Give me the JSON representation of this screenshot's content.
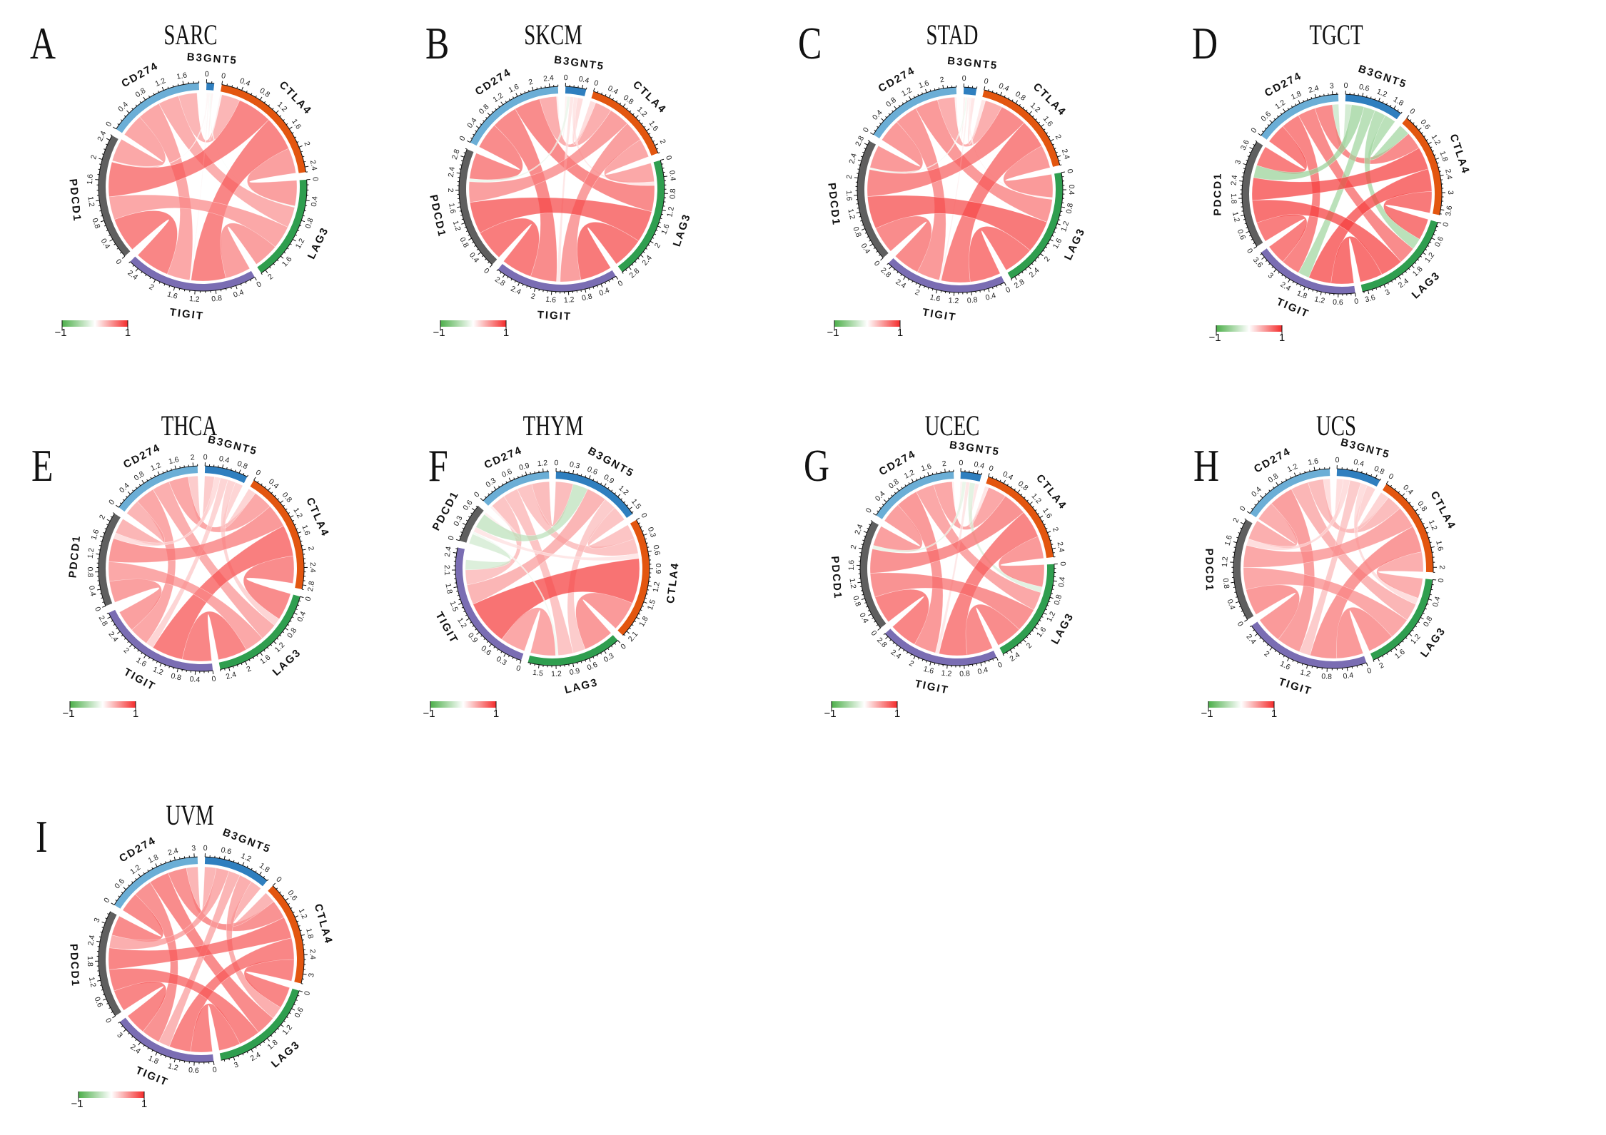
{
  "figure": {
    "description": "Chord diagrams of gene-gene correlations across nine cancer types",
    "legend": {
      "min_label": "-1",
      "max_label": "1",
      "neg_color": "#4daf4a",
      "mid_color": "#ffffff",
      "pos_color": "#f42c2c"
    },
    "gene_colors": {
      "CD274": "#6baed6",
      "B3GNT5": "#2f7fbf",
      "CTLA4": "#e3560f",
      "LAG3": "#2f9e4f",
      "TIGIT": "#7a6db3",
      "PDCD1": "#5f5f5f"
    }
  },
  "chart_data": [
    {
      "type": "chord",
      "letter": "A",
      "title": "SARC",
      "tick_step": 0.4,
      "genes": [
        "B3GNT5",
        "CTLA4",
        "LAG3",
        "TIGIT",
        "PDCD1",
        "CD274"
      ],
      "axis_max": {
        "B3GNT5": 0.15,
        "CTLA4": 2.5,
        "LAG3": 2.1,
        "TIGIT": 2.6,
        "PDCD1": 2.5,
        "CD274": 1.9
      },
      "links": [
        [
          "CD274",
          "B3GNT5",
          0.02
        ],
        [
          "CD274",
          "CTLA4",
          0.4
        ],
        [
          "CD274",
          "LAG3",
          0.45
        ],
        [
          "CD274",
          "TIGIT",
          0.5
        ],
        [
          "CD274",
          "PDCD1",
          0.5
        ],
        [
          "B3GNT5",
          "CTLA4",
          0.04
        ],
        [
          "B3GNT5",
          "LAG3",
          -0.03
        ],
        [
          "B3GNT5",
          "TIGIT",
          0.03
        ],
        [
          "B3GNT5",
          "PDCD1",
          0.03
        ],
        [
          "CTLA4",
          "LAG3",
          0.55
        ],
        [
          "CTLA4",
          "TIGIT",
          0.75
        ],
        [
          "CTLA4",
          "PDCD1",
          0.75
        ],
        [
          "LAG3",
          "TIGIT",
          0.55
        ],
        [
          "LAG3",
          "PDCD1",
          0.5
        ],
        [
          "TIGIT",
          "PDCD1",
          0.75
        ]
      ]
    },
    {
      "type": "chord",
      "letter": "B",
      "title": "SKCM",
      "tick_step": 0.4,
      "genes": [
        "B3GNT5",
        "CTLA4",
        "LAG3",
        "TIGIT",
        "PDCD1",
        "CD274"
      ],
      "axis_max": {
        "B3GNT5": 0.5,
        "CTLA4": 2.2,
        "LAG3": 3.0,
        "TIGIT": 3.0,
        "PDCD1": 3.0,
        "CD274": 2.6
      },
      "links": [
        [
          "CD274",
          "B3GNT5",
          0.05
        ],
        [
          "CD274",
          "CTLA4",
          0.45
        ],
        [
          "CD274",
          "LAG3",
          0.7
        ],
        [
          "CD274",
          "TIGIT",
          0.7
        ],
        [
          "CD274",
          "PDCD1",
          0.7
        ],
        [
          "B3GNT5",
          "CTLA4",
          0.15
        ],
        [
          "B3GNT5",
          "LAG3",
          0.1
        ],
        [
          "B3GNT5",
          "TIGIT",
          0.1
        ],
        [
          "B3GNT5",
          "PDCD1",
          -0.08
        ],
        [
          "CTLA4",
          "LAG3",
          0.5
        ],
        [
          "CTLA4",
          "TIGIT",
          0.55
        ],
        [
          "CTLA4",
          "PDCD1",
          0.55
        ],
        [
          "LAG3",
          "TIGIT",
          0.85
        ],
        [
          "LAG3",
          "PDCD1",
          0.85
        ],
        [
          "TIGIT",
          "PDCD1",
          0.82
        ]
      ]
    },
    {
      "type": "chord",
      "letter": "C",
      "title": "STAD",
      "tick_step": 0.4,
      "genes": [
        "B3GNT5",
        "CTLA4",
        "LAG3",
        "TIGIT",
        "PDCD1",
        "CD274"
      ],
      "axis_max": {
        "B3GNT5": 0.3,
        "CTLA4": 2.6,
        "LAG3": 2.9,
        "TIGIT": 2.9,
        "PDCD1": 2.9,
        "CD274": 2.3
      },
      "links": [
        [
          "CD274",
          "B3GNT5",
          0.05
        ],
        [
          "CD274",
          "CTLA4",
          0.45
        ],
        [
          "CD274",
          "LAG3",
          0.6
        ],
        [
          "CD274",
          "TIGIT",
          0.6
        ],
        [
          "CD274",
          "PDCD1",
          0.6
        ],
        [
          "B3GNT5",
          "CTLA4",
          0.1
        ],
        [
          "B3GNT5",
          "LAG3",
          0.05
        ],
        [
          "B3GNT5",
          "TIGIT",
          0.05
        ],
        [
          "B3GNT5",
          "PDCD1",
          -0.05
        ],
        [
          "CTLA4",
          "LAG3",
          0.6
        ],
        [
          "CTLA4",
          "TIGIT",
          0.75
        ],
        [
          "CTLA4",
          "PDCD1",
          0.7
        ],
        [
          "LAG3",
          "TIGIT",
          0.8
        ],
        [
          "LAG3",
          "PDCD1",
          0.85
        ],
        [
          "TIGIT",
          "PDCD1",
          0.7
        ]
      ]
    },
    {
      "type": "chord",
      "letter": "D",
      "title": "TGCT",
      "tick_step": 0.6,
      "genes": [
        "B3GNT5",
        "CTLA4",
        "LAG3",
        "TIGIT",
        "PDCD1",
        "CD274"
      ],
      "axis_max": {
        "B3GNT5": 2.1,
        "CTLA4": 3.8,
        "LAG3": 3.8,
        "TIGIT": 3.8,
        "PDCD1": 3.9,
        "CD274": 3.2
      },
      "links": [
        [
          "CD274",
          "B3GNT5",
          -0.25
        ],
        [
          "CD274",
          "CTLA4",
          0.7
        ],
        [
          "CD274",
          "LAG3",
          0.7
        ],
        [
          "CD274",
          "TIGIT",
          0.75
        ],
        [
          "CD274",
          "PDCD1",
          0.8
        ],
        [
          "B3GNT5",
          "CTLA4",
          -0.45
        ],
        [
          "B3GNT5",
          "LAG3",
          -0.45
        ],
        [
          "B3GNT5",
          "TIGIT",
          -0.45
        ],
        [
          "B3GNT5",
          "PDCD1",
          -0.5
        ],
        [
          "CTLA4",
          "LAG3",
          0.85
        ],
        [
          "CTLA4",
          "TIGIT",
          0.9
        ],
        [
          "CTLA4",
          "PDCD1",
          0.9
        ],
        [
          "LAG3",
          "TIGIT",
          0.9
        ],
        [
          "LAG3",
          "PDCD1",
          0.9
        ],
        [
          "TIGIT",
          "PDCD1",
          0.8
        ]
      ]
    },
    {
      "type": "chord",
      "letter": "E",
      "title": "THCA",
      "tick_step": 0.4,
      "genes": [
        "B3GNT5",
        "CTLA4",
        "LAG3",
        "TIGIT",
        "PDCD1",
        "CD274"
      ],
      "axis_max": {
        "B3GNT5": 1.0,
        "CTLA4": 2.9,
        "LAG3": 2.6,
        "TIGIT": 2.9,
        "PDCD1": 2.2,
        "CD274": 2.1
      },
      "links": [
        [
          "CD274",
          "B3GNT5",
          0.25
        ],
        [
          "CD274",
          "CTLA4",
          0.5
        ],
        [
          "CD274",
          "LAG3",
          0.45
        ],
        [
          "CD274",
          "TIGIT",
          0.5
        ],
        [
          "CD274",
          "PDCD1",
          0.4
        ],
        [
          "B3GNT5",
          "CTLA4",
          0.2
        ],
        [
          "B3GNT5",
          "LAG3",
          0.2
        ],
        [
          "B3GNT5",
          "TIGIT",
          0.2
        ],
        [
          "B3GNT5",
          "PDCD1",
          0.15
        ],
        [
          "CTLA4",
          "LAG3",
          0.7
        ],
        [
          "CTLA4",
          "TIGIT",
          0.8
        ],
        [
          "CTLA4",
          "PDCD1",
          0.6
        ],
        [
          "LAG3",
          "TIGIT",
          0.75
        ],
        [
          "LAG3",
          "PDCD1",
          0.5
        ],
        [
          "TIGIT",
          "PDCD1",
          0.55
        ]
      ]
    },
    {
      "type": "chord",
      "letter": "F",
      "title": "THYM",
      "tick_step": 0.3,
      "genes": [
        "B3GNT5",
        "CTLA4",
        "LAG3",
        "TIGIT",
        "PDCD1",
        "CD274"
      ],
      "axis_max": {
        "B3GNT5": 1.6,
        "CTLA4": 2.2,
        "LAG3": 1.7,
        "TIGIT": 2.5,
        "PDCD1": 0.7,
        "CD274": 1.3
      },
      "links": [
        [
          "CD274",
          "B3GNT5",
          0.35
        ],
        [
          "CD274",
          "CTLA4",
          0.3
        ],
        [
          "CD274",
          "LAG3",
          0.3
        ],
        [
          "CD274",
          "TIGIT",
          0.3
        ],
        [
          "CD274",
          "PDCD1",
          0.05
        ],
        [
          "B3GNT5",
          "CTLA4",
          0.3
        ],
        [
          "B3GNT5",
          "LAG3",
          0.25
        ],
        [
          "B3GNT5",
          "TIGIT",
          0.4
        ],
        [
          "B3GNT5",
          "PDCD1",
          -0.3
        ],
        [
          "CTLA4",
          "LAG3",
          0.6
        ],
        [
          "CTLA4",
          "TIGIT",
          0.9
        ],
        [
          "CTLA4",
          "PDCD1",
          0.1
        ],
        [
          "LAG3",
          "TIGIT",
          0.5
        ],
        [
          "LAG3",
          "PDCD1",
          -0.05
        ],
        [
          "TIGIT",
          "PDCD1",
          -0.2
        ]
      ]
    },
    {
      "type": "chord",
      "letter": "G",
      "title": "UCEC",
      "tick_step": 0.4,
      "genes": [
        "B3GNT5",
        "CTLA4",
        "LAG3",
        "TIGIT",
        "PDCD1",
        "CD274"
      ],
      "axis_max": {
        "B3GNT5": 0.5,
        "CTLA4": 2.6,
        "LAG3": 2.6,
        "TIGIT": 2.9,
        "PDCD1": 2.7,
        "CD274": 2.2
      },
      "links": [
        [
          "CD274",
          "B3GNT5",
          0.05
        ],
        [
          "CD274",
          "CTLA4",
          0.5
        ],
        [
          "CD274",
          "LAG3",
          0.5
        ],
        [
          "CD274",
          "TIGIT",
          0.6
        ],
        [
          "CD274",
          "PDCD1",
          0.55
        ],
        [
          "B3GNT5",
          "CTLA4",
          0.1
        ],
        [
          "B3GNT5",
          "LAG3",
          -0.15
        ],
        [
          "B3GNT5",
          "TIGIT",
          0.1
        ],
        [
          "B3GNT5",
          "PDCD1",
          -0.1
        ],
        [
          "CTLA4",
          "LAG3",
          0.6
        ],
        [
          "CTLA4",
          "TIGIT",
          0.75
        ],
        [
          "CTLA4",
          "PDCD1",
          0.65
        ],
        [
          "LAG3",
          "TIGIT",
          0.7
        ],
        [
          "LAG3",
          "PDCD1",
          0.65
        ],
        [
          "TIGIT",
          "PDCD1",
          0.75
        ]
      ]
    },
    {
      "type": "chord",
      "letter": "H",
      "title": "UCS",
      "tick_step": 0.4,
      "genes": [
        "B3GNT5",
        "CTLA4",
        "LAG3",
        "TIGIT",
        "PDCD1",
        "CD274"
      ],
      "axis_max": {
        "B3GNT5": 0.9,
        "CTLA4": 2.1,
        "LAG3": 2.1,
        "TIGIT": 2.6,
        "PDCD1": 2.1,
        "CD274": 1.9
      },
      "links": [
        [
          "CD274",
          "B3GNT5",
          0.15
        ],
        [
          "CD274",
          "CTLA4",
          0.35
        ],
        [
          "CD274",
          "LAG3",
          0.4
        ],
        [
          "CD274",
          "TIGIT",
          0.55
        ],
        [
          "CD274",
          "PDCD1",
          0.45
        ],
        [
          "B3GNT5",
          "CTLA4",
          0.2
        ],
        [
          "B3GNT5",
          "LAG3",
          0.15
        ],
        [
          "B3GNT5",
          "TIGIT",
          0.25
        ],
        [
          "B3GNT5",
          "PDCD1",
          0.15
        ],
        [
          "CTLA4",
          "LAG3",
          0.45
        ],
        [
          "CTLA4",
          "TIGIT",
          0.6
        ],
        [
          "CTLA4",
          "PDCD1",
          0.5
        ],
        [
          "LAG3",
          "TIGIT",
          0.6
        ],
        [
          "LAG3",
          "PDCD1",
          0.5
        ],
        [
          "TIGIT",
          "PDCD1",
          0.6
        ]
      ]
    },
    {
      "type": "chord",
      "letter": "I",
      "title": "UVM",
      "tick_step": 0.6,
      "genes": [
        "B3GNT5",
        "CTLA4",
        "LAG3",
        "TIGIT",
        "PDCD1",
        "CD274"
      ],
      "axis_max": {
        "B3GNT5": 2.1,
        "CTLA4": 3.3,
        "LAG3": 3.4,
        "TIGIT": 3.3,
        "PDCD1": 3.4,
        "CD274": 3.1
      },
      "links": [
        [
          "CD274",
          "B3GNT5",
          0.4
        ],
        [
          "CD274",
          "CTLA4",
          0.65
        ],
        [
          "CD274",
          "LAG3",
          0.7
        ],
        [
          "CD274",
          "TIGIT",
          0.65
        ],
        [
          "CD274",
          "PDCD1",
          0.7
        ],
        [
          "B3GNT5",
          "CTLA4",
          0.4
        ],
        [
          "B3GNT5",
          "LAG3",
          0.45
        ],
        [
          "B3GNT5",
          "TIGIT",
          0.4
        ],
        [
          "B3GNT5",
          "PDCD1",
          0.45
        ],
        [
          "CTLA4",
          "LAG3",
          0.75
        ],
        [
          "CTLA4",
          "TIGIT",
          0.75
        ],
        [
          "CTLA4",
          "PDCD1",
          0.75
        ],
        [
          "LAG3",
          "TIGIT",
          0.75
        ],
        [
          "LAG3",
          "PDCD1",
          0.75
        ],
        [
          "TIGIT",
          "PDCD1",
          0.75
        ]
      ]
    }
  ]
}
